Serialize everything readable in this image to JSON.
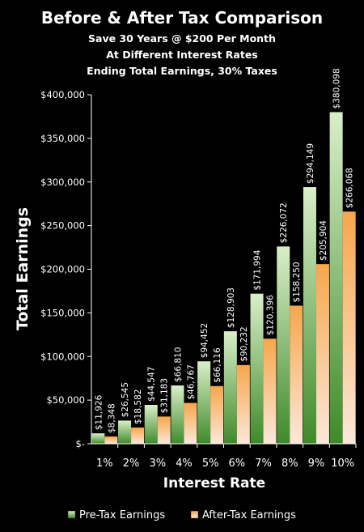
{
  "chart_data": {
    "type": "bar",
    "title": "Before & After Tax Comparison",
    "subtitle_lines": [
      "Save 30 Years @ $200 Per Month",
      "At Different Interest Rates",
      "Ending Total Earnings, 30% Taxes"
    ],
    "xlabel": "Interest Rate",
    "ylabel": "Total Earnings",
    "categories": [
      "1%",
      "2%",
      "3%",
      "4%",
      "5%",
      "6%",
      "7%",
      "8%",
      "9%",
      "10%"
    ],
    "series": [
      {
        "name": "Pre-Tax Earnings",
        "values": [
          11926,
          26545,
          44547,
          66810,
          94452,
          128903,
          171994,
          226072,
          294149,
          380098
        ],
        "labels": [
          "$11,926",
          "$26,545",
          "$44,547",
          "$66,810",
          "$94,452",
          "$128,903",
          "$171,994",
          "$226,072",
          "$294,149",
          "$380,098"
        ],
        "color_top": "#d9efc8",
        "color_bottom": "#3f8a2a"
      },
      {
        "name": "After-Tax Earnings",
        "values": [
          8348,
          18582,
          31183,
          46767,
          66116,
          90232,
          120396,
          158250,
          205904,
          266068
        ],
        "labels": [
          "$8,348",
          "$18,582",
          "$31,183",
          "$46,767",
          "$66,116",
          "$90,232",
          "$120,396",
          "$158,250",
          "$205,904",
          "$266,068"
        ],
        "color_top": "#f7a64c",
        "color_bottom": "#fbe8da"
      }
    ],
    "ylim": [
      0,
      400000
    ],
    "yticks": [
      0,
      50000,
      100000,
      150000,
      200000,
      250000,
      300000,
      350000,
      400000
    ],
    "ytick_labels": [
      "$-",
      "$50,000",
      "$100,000",
      "$150,000",
      "$200,000",
      "$250,000",
      "$300,000",
      "$350,000",
      "$400,000"
    ],
    "legend_position": "bottom",
    "grid": false
  }
}
